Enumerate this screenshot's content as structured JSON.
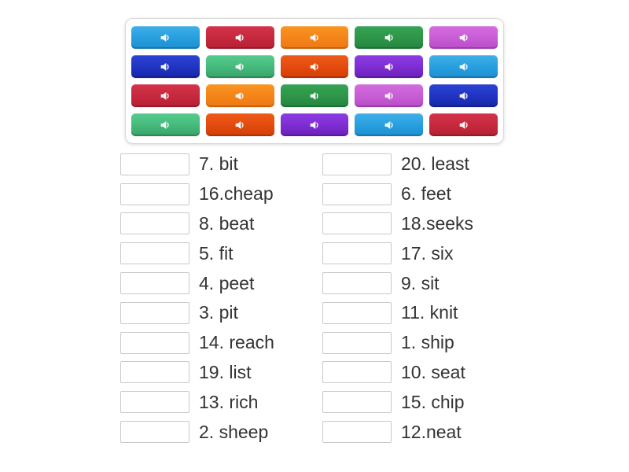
{
  "audio_panel": {
    "button_icon": "volume-icon",
    "rows": [
      [
        "lightblue",
        "red",
        "orange",
        "green",
        "orchid"
      ],
      [
        "darkblue",
        "seagreen",
        "orangered",
        "purple",
        "lightblue"
      ],
      [
        "red",
        "orange",
        "green",
        "orchid",
        "darkblue"
      ],
      [
        "seagreen",
        "orangered",
        "purple",
        "lightblue",
        "red"
      ]
    ],
    "colors": {
      "lightblue": {
        "top": "#41afe9",
        "base": "#2aa1e0",
        "bottom": "#1c8fd2"
      },
      "red": {
        "top": "#d4344a",
        "base": "#c82a3f",
        "bottom": "#b81f34"
      },
      "orange": {
        "top": "#f9961f",
        "base": "#f5861c",
        "bottom": "#ee7812"
      },
      "green": {
        "top": "#35a354",
        "base": "#2f9849",
        "bottom": "#258540"
      },
      "orchid": {
        "top": "#d36cdf",
        "base": "#ca60d6",
        "bottom": "#b94cc8"
      },
      "darkblue": {
        "top": "#2c44d2",
        "base": "#2237c6",
        "bottom": "#1626a8"
      },
      "seagreen": {
        "top": "#55cb8d",
        "base": "#48bd7e",
        "bottom": "#38a369"
      },
      "orangered": {
        "top": "#ed5b18",
        "base": "#e54d10",
        "bottom": "#d43e06"
      },
      "purple": {
        "top": "#8c3ce2",
        "base": "#8030d5",
        "bottom": "#6c20ba"
      }
    }
  },
  "match_list": {
    "text_color": "#333333",
    "box_border_color": "#c9c9c9",
    "left": [
      "7. bit",
      "16.cheap",
      "8. beat",
      "5. fit",
      "4. peet",
      "3. pit",
      "14. reach",
      "19. list",
      "13. rich",
      "2. sheep"
    ],
    "right": [
      "20. least",
      "6. feet",
      "18.seeks",
      "17. six",
      "9. sit",
      "11. knit",
      "1. ship",
      "10. seat",
      "15. chip",
      "12.neat"
    ]
  }
}
